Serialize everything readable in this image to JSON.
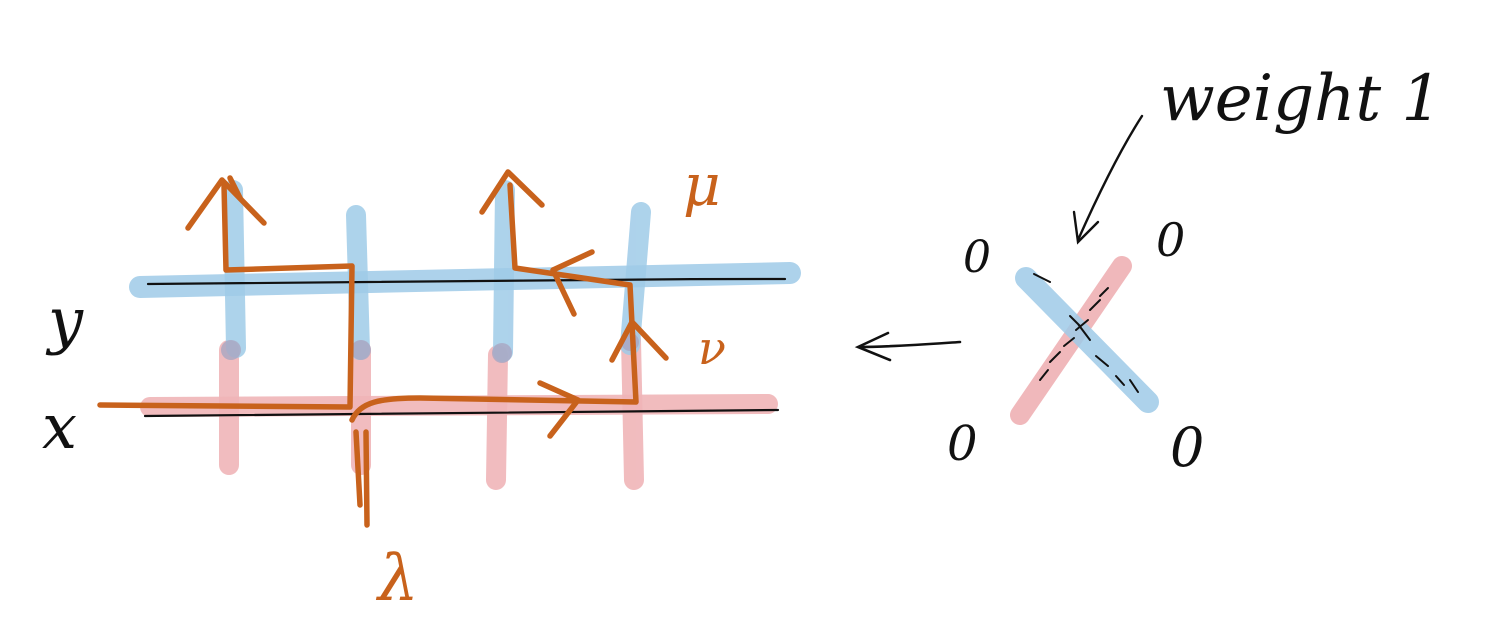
{
  "labels": {
    "y": "y",
    "x": "x",
    "mu": "μ",
    "nu": "ν",
    "lambda": "λ",
    "weight": "weight 1"
  },
  "vertex_weights": {
    "top_left": "0",
    "top_right": "0",
    "bottom_left": "0",
    "bottom_right": "0"
  },
  "colors": {
    "blue_line": "#9fcbe8",
    "red_line": "#f0b5b8",
    "path": "#c8621c",
    "ink": "#111111"
  }
}
